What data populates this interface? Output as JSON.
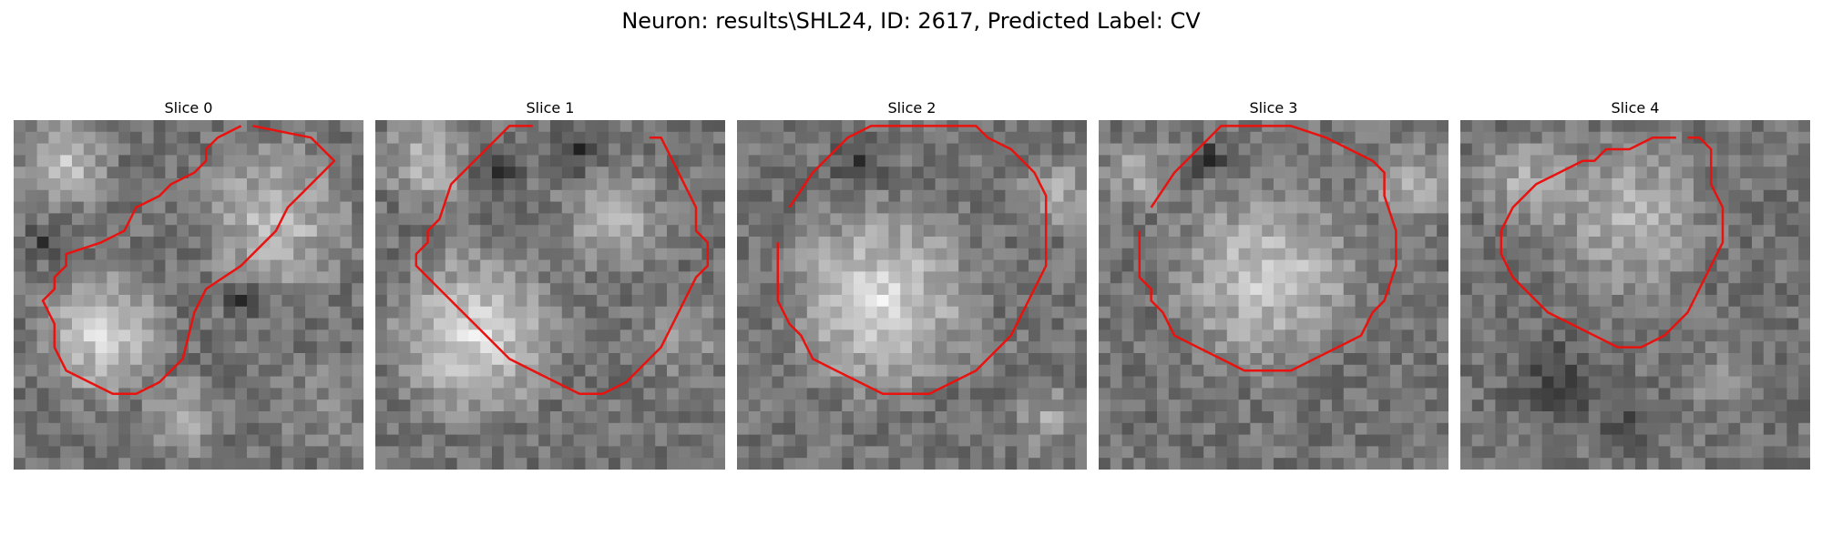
{
  "figure": {
    "title": "Neuron: results\\SHL24, ID: 2617, Predicted Label: CV",
    "contour_color": "#e8120f",
    "panels": [
      {
        "label": "Slice 0",
        "contour": [
          [
            20.5,
            0.5
          ],
          [
            25.5,
            1.5
          ],
          [
            27.5,
            3.5
          ],
          [
            26.5,
            4.5
          ],
          [
            24.5,
            6.5
          ],
          [
            23.5,
            7.5
          ],
          [
            22.5,
            9.5
          ],
          [
            19.5,
            12.5
          ],
          [
            16.5,
            14.5
          ],
          [
            15.5,
            16.5
          ],
          [
            14.5,
            20.5
          ],
          [
            12.5,
            22.5
          ],
          [
            10.5,
            23.5
          ],
          [
            8.5,
            23.5
          ],
          [
            6.5,
            22.5
          ],
          [
            4.5,
            21.5
          ],
          [
            3.5,
            19.5
          ],
          [
            3.5,
            17.5
          ],
          [
            2.5,
            15.5
          ],
          [
            3.5,
            14.5
          ],
          [
            3.5,
            13.5
          ],
          [
            4.5,
            12.5
          ],
          [
            4.5,
            11.5
          ],
          [
            7.5,
            10.5
          ],
          [
            9.5,
            9.5
          ],
          [
            10.5,
            7.5
          ],
          [
            12.5,
            6.5
          ],
          [
            13.5,
            5.5
          ],
          [
            15.5,
            4.5
          ],
          [
            16.5,
            3.5
          ],
          [
            16.5,
            2.5
          ],
          [
            17.5,
            1.5
          ],
          [
            19.5,
            0.5
          ]
        ]
      },
      {
        "label": "Slice 1",
        "contour": [
          [
            23.5,
            1.5
          ],
          [
            24.5,
            1.5
          ],
          [
            25.5,
            3.5
          ],
          [
            26.5,
            5.5
          ],
          [
            27.5,
            7.5
          ],
          [
            27.5,
            9.5
          ],
          [
            28.5,
            10.5
          ],
          [
            28.5,
            12.5
          ],
          [
            27.5,
            13.5
          ],
          [
            26.5,
            15.5
          ],
          [
            25.5,
            17.5
          ],
          [
            24.5,
            19.5
          ],
          [
            23.5,
            20.5
          ],
          [
            22.5,
            21.5
          ],
          [
            21.5,
            22.5
          ],
          [
            19.5,
            23.5
          ],
          [
            17.5,
            23.5
          ],
          [
            15.5,
            22.5
          ],
          [
            13.5,
            21.5
          ],
          [
            11.5,
            20.5
          ],
          [
            9.5,
            18.5
          ],
          [
            7.5,
            16.5
          ],
          [
            5.5,
            14.5
          ],
          [
            3.5,
            12.5
          ],
          [
            3.5,
            11.5
          ],
          [
            4.5,
            10.5
          ],
          [
            4.5,
            9.5
          ],
          [
            5.5,
            8.5
          ],
          [
            6.5,
            5.5
          ],
          [
            7.5,
            4.5
          ],
          [
            8.5,
            3.5
          ],
          [
            9.5,
            2.5
          ],
          [
            10.5,
            1.5
          ],
          [
            11.5,
            0.5
          ],
          [
            13.5,
            0.5
          ]
        ]
      },
      {
        "label": "Slice 2",
        "contour": [
          [
            4.5,
            7.5
          ],
          [
            6.5,
            4.5
          ],
          [
            9.5,
            1.5
          ],
          [
            11.5,
            0.5
          ],
          [
            12.5,
            0.5
          ],
          [
            20.5,
            0.5
          ],
          [
            21.5,
            1.5
          ],
          [
            23.5,
            2.5
          ],
          [
            24.5,
            3.5
          ],
          [
            25.5,
            4.5
          ],
          [
            26.5,
            6.5
          ],
          [
            26.5,
            9.5
          ],
          [
            26.5,
            12.5
          ],
          [
            25.5,
            14.5
          ],
          [
            24.5,
            16.5
          ],
          [
            23.5,
            18.5
          ],
          [
            22.5,
            19.5
          ],
          [
            21.5,
            20.5
          ],
          [
            20.5,
            21.5
          ],
          [
            18.5,
            22.5
          ],
          [
            16.5,
            23.5
          ],
          [
            14.5,
            23.5
          ],
          [
            12.5,
            23.5
          ],
          [
            10.5,
            22.5
          ],
          [
            8.5,
            21.5
          ],
          [
            6.5,
            20.5
          ],
          [
            5.5,
            18.5
          ],
          [
            4.5,
            17.5
          ],
          [
            3.5,
            15.5
          ],
          [
            3.5,
            12.5
          ],
          [
            3.5,
            10.5
          ]
        ]
      },
      {
        "label": "Slice 3",
        "contour": [
          [
            4.5,
            7.5
          ],
          [
            6.5,
            4.5
          ],
          [
            8.5,
            2.5
          ],
          [
            9.5,
            1.5
          ],
          [
            10.5,
            0.5
          ],
          [
            13.5,
            0.5
          ],
          [
            16.5,
            0.5
          ],
          [
            19.5,
            1.5
          ],
          [
            21.5,
            2.5
          ],
          [
            23.5,
            3.5
          ],
          [
            24.5,
            4.5
          ],
          [
            24.5,
            6.5
          ],
          [
            25.5,
            9.5
          ],
          [
            25.5,
            12.5
          ],
          [
            24.5,
            15.5
          ],
          [
            23.5,
            16.5
          ],
          [
            22.5,
            18.5
          ],
          [
            20.5,
            19.5
          ],
          [
            18.5,
            20.5
          ],
          [
            16.5,
            21.5
          ],
          [
            14.5,
            21.5
          ],
          [
            12.5,
            21.5
          ],
          [
            10.5,
            20.5
          ],
          [
            8.5,
            19.5
          ],
          [
            6.5,
            18.5
          ],
          [
            5.5,
            16.5
          ],
          [
            4.5,
            15.5
          ],
          [
            4.5,
            14.5
          ],
          [
            3.5,
            13.5
          ],
          [
            3.5,
            11.5
          ],
          [
            3.5,
            9.5
          ]
        ]
      },
      {
        "label": "Slice 4",
        "contour": [
          [
            19.5,
            1.5
          ],
          [
            20.5,
            1.5
          ],
          [
            21.5,
            2.5
          ],
          [
            21.5,
            5.5
          ],
          [
            22.5,
            7.5
          ],
          [
            22.5,
            10.5
          ],
          [
            21.5,
            12.5
          ],
          [
            20.5,
            14.5
          ],
          [
            19.5,
            16.5
          ],
          [
            18.5,
            17.5
          ],
          [
            17.5,
            18.5
          ],
          [
            15.5,
            19.5
          ],
          [
            13.5,
            19.5
          ],
          [
            11.5,
            18.5
          ],
          [
            9.5,
            17.5
          ],
          [
            7.5,
            16.5
          ],
          [
            6.5,
            15.5
          ],
          [
            4.5,
            13.5
          ],
          [
            3.5,
            11.5
          ],
          [
            3.5,
            9.5
          ],
          [
            4.5,
            7.5
          ],
          [
            5.5,
            6.5
          ],
          [
            6.5,
            5.5
          ],
          [
            8.5,
            4.5
          ],
          [
            10.5,
            3.5
          ],
          [
            11.5,
            3.5
          ],
          [
            12.5,
            2.5
          ],
          [
            14.5,
            2.5
          ],
          [
            16.5,
            1.5
          ],
          [
            18.5,
            1.5
          ]
        ]
      }
    ]
  }
}
